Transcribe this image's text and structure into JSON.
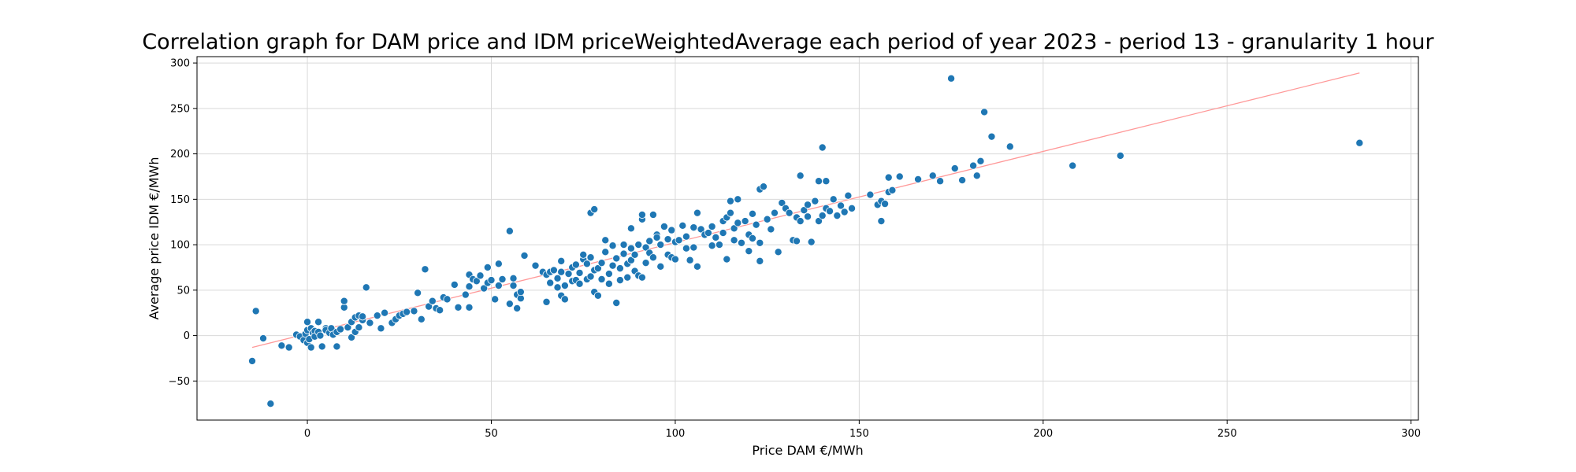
{
  "chart_data": {
    "type": "scatter",
    "title": "Correlation graph for DAM price and IDM priceWeightedAverage each period of year 2023 - period 13 - granularity 1 hour",
    "xlabel": "Price DAM €/MWh",
    "ylabel": "Average price IDM €/MWh",
    "xlim": [
      -30,
      302
    ],
    "ylim": [
      -93,
      307
    ],
    "xticks": [
      0,
      50,
      100,
      150,
      200,
      250,
      300
    ],
    "yticks": [
      -50,
      0,
      50,
      100,
      150,
      200,
      250,
      300
    ],
    "grid": true,
    "colors": {
      "points": "#1f77b4",
      "trend": "#ff9999"
    },
    "trendline": {
      "x": [
        -15,
        286
      ],
      "y": [
        -13,
        289
      ]
    },
    "points": [
      [
        -15,
        -28
      ],
      [
        -14,
        27
      ],
      [
        -12,
        -3
      ],
      [
        -10,
        -75
      ],
      [
        -7,
        -11
      ],
      [
        -5,
        -13
      ],
      [
        -3,
        1
      ],
      [
        -2,
        -1
      ],
      [
        -1,
        -5
      ],
      [
        -0.5,
        2
      ],
      [
        0,
        6
      ],
      [
        0,
        15
      ],
      [
        0,
        -8
      ],
      [
        0.5,
        -4
      ],
      [
        1,
        8
      ],
      [
        1,
        -13
      ],
      [
        1.5,
        3
      ],
      [
        2,
        5
      ],
      [
        2,
        -1
      ],
      [
        3,
        15
      ],
      [
        3,
        4
      ],
      [
        3.5,
        0
      ],
      [
        4,
        -12
      ],
      [
        5,
        8
      ],
      [
        5,
        6
      ],
      [
        6,
        3
      ],
      [
        6.5,
        8
      ],
      [
        7,
        1
      ],
      [
        8,
        4
      ],
      [
        8,
        -12
      ],
      [
        9,
        7
      ],
      [
        10,
        31
      ],
      [
        10,
        38
      ],
      [
        11,
        9
      ],
      [
        12,
        -2
      ],
      [
        12,
        15
      ],
      [
        13,
        20
      ],
      [
        13,
        4
      ],
      [
        14,
        22
      ],
      [
        14,
        9
      ],
      [
        15,
        17
      ],
      [
        15,
        21
      ],
      [
        16,
        53
      ],
      [
        17,
        14
      ],
      [
        19,
        22
      ],
      [
        20,
        8
      ],
      [
        21,
        25
      ],
      [
        23,
        14
      ],
      [
        24,
        18
      ],
      [
        25,
        22
      ],
      [
        26,
        24
      ],
      [
        27,
        26
      ],
      [
        29,
        27
      ],
      [
        30,
        47
      ],
      [
        31,
        18
      ],
      [
        32,
        73
      ],
      [
        33,
        32
      ],
      [
        34,
        38
      ],
      [
        35,
        30
      ],
      [
        36,
        28
      ],
      [
        37,
        42
      ],
      [
        38,
        40
      ],
      [
        40,
        56
      ],
      [
        41,
        31
      ],
      [
        43,
        45
      ],
      [
        44,
        31
      ],
      [
        44,
        54
      ],
      [
        44,
        67
      ],
      [
        45,
        62
      ],
      [
        46,
        60
      ],
      [
        47,
        66
      ],
      [
        48,
        52
      ],
      [
        49,
        58
      ],
      [
        49,
        75
      ],
      [
        50,
        61
      ],
      [
        51,
        40
      ],
      [
        52,
        55
      ],
      [
        52,
        79
      ],
      [
        53,
        62
      ],
      [
        55,
        115
      ],
      [
        55,
        35
      ],
      [
        56,
        63
      ],
      [
        56,
        55
      ],
      [
        57,
        45
      ],
      [
        57,
        30
      ],
      [
        58,
        41
      ],
      [
        58,
        48
      ],
      [
        59,
        88
      ],
      [
        62,
        77
      ],
      [
        64,
        70
      ],
      [
        65,
        37
      ],
      [
        65,
        67
      ],
      [
        66,
        58
      ],
      [
        66,
        70
      ],
      [
        67,
        72
      ],
      [
        68,
        53
      ],
      [
        68,
        63
      ],
      [
        69,
        70
      ],
      [
        69,
        82
      ],
      [
        69,
        44
      ],
      [
        70,
        40
      ],
      [
        70,
        55
      ],
      [
        71,
        68
      ],
      [
        72,
        60
      ],
      [
        72,
        75
      ],
      [
        73,
        78
      ],
      [
        73,
        61
      ],
      [
        74,
        57
      ],
      [
        74,
        69
      ],
      [
        75,
        84
      ],
      [
        75,
        89
      ],
      [
        76,
        62
      ],
      [
        76,
        79
      ],
      [
        77,
        65
      ],
      [
        77,
        86
      ],
      [
        77,
        135
      ],
      [
        78,
        139
      ],
      [
        78,
        48
      ],
      [
        78,
        72
      ],
      [
        79,
        44
      ],
      [
        79,
        74
      ],
      [
        80,
        80
      ],
      [
        80,
        62
      ],
      [
        81,
        105
      ],
      [
        81,
        92
      ],
      [
        82,
        68
      ],
      [
        82,
        57
      ],
      [
        83,
        77
      ],
      [
        83,
        99
      ],
      [
        84,
        36
      ],
      [
        84,
        85
      ],
      [
        85,
        61
      ],
      [
        85,
        74
      ],
      [
        86,
        100
      ],
      [
        86,
        90
      ],
      [
        87,
        64
      ],
      [
        87,
        79
      ],
      [
        88,
        83
      ],
      [
        88,
        96
      ],
      [
        88,
        118
      ],
      [
        89,
        89
      ],
      [
        89,
        71
      ],
      [
        90,
        66
      ],
      [
        90,
        100
      ],
      [
        91,
        64
      ],
      [
        91,
        128
      ],
      [
        91,
        133
      ],
      [
        92,
        80
      ],
      [
        92,
        97
      ],
      [
        93,
        91
      ],
      [
        93,
        104
      ],
      [
        94,
        133
      ],
      [
        94,
        86
      ],
      [
        95,
        111
      ],
      [
        95,
        108
      ],
      [
        96,
        76
      ],
      [
        96,
        100
      ],
      [
        97,
        120
      ],
      [
        98,
        89
      ],
      [
        98,
        106
      ],
      [
        99,
        86
      ],
      [
        99,
        116
      ],
      [
        100,
        84
      ],
      [
        100,
        103
      ],
      [
        101,
        105
      ],
      [
        102,
        121
      ],
      [
        103,
        96
      ],
      [
        103,
        109
      ],
      [
        104,
        83
      ],
      [
        105,
        97
      ],
      [
        105,
        119
      ],
      [
        106,
        76
      ],
      [
        106,
        135
      ],
      [
        107,
        117
      ],
      [
        108,
        111
      ],
      [
        109,
        113
      ],
      [
        110,
        99
      ],
      [
        110,
        120
      ],
      [
        111,
        108
      ],
      [
        112,
        100
      ],
      [
        113,
        113
      ],
      [
        113,
        126
      ],
      [
        114,
        84
      ],
      [
        114,
        130
      ],
      [
        115,
        135
      ],
      [
        115,
        148
      ],
      [
        116,
        105
      ],
      [
        116,
        118
      ],
      [
        117,
        124
      ],
      [
        117,
        150
      ],
      [
        118,
        102
      ],
      [
        119,
        126
      ],
      [
        120,
        93
      ],
      [
        120,
        111
      ],
      [
        121,
        107
      ],
      [
        121,
        134
      ],
      [
        122,
        122
      ],
      [
        123,
        82
      ],
      [
        123,
        102
      ],
      [
        123,
        161
      ],
      [
        124,
        164
      ],
      [
        125,
        128
      ],
      [
        126,
        117
      ],
      [
        127,
        135
      ],
      [
        128,
        92
      ],
      [
        129,
        146
      ],
      [
        130,
        140
      ],
      [
        131,
        135
      ],
      [
        132,
        105
      ],
      [
        133,
        104
      ],
      [
        133,
        130
      ],
      [
        134,
        126
      ],
      [
        134,
        176
      ],
      [
        135,
        138
      ],
      [
        136,
        131
      ],
      [
        136,
        144
      ],
      [
        137,
        103
      ],
      [
        138,
        148
      ],
      [
        139,
        126
      ],
      [
        139,
        170
      ],
      [
        140,
        207
      ],
      [
        140,
        132
      ],
      [
        141,
        170
      ],
      [
        141,
        140
      ],
      [
        142,
        137
      ],
      [
        143,
        150
      ],
      [
        144,
        132
      ],
      [
        145,
        143
      ],
      [
        146,
        136
      ],
      [
        147,
        154
      ],
      [
        148,
        140
      ],
      [
        153,
        155
      ],
      [
        155,
        144
      ],
      [
        156,
        148
      ],
      [
        156,
        126
      ],
      [
        157,
        145
      ],
      [
        158,
        158
      ],
      [
        158,
        174
      ],
      [
        159,
        160
      ],
      [
        161,
        175
      ],
      [
        166,
        172
      ],
      [
        170,
        176
      ],
      [
        172,
        170
      ],
      [
        175,
        283
      ],
      [
        176,
        184
      ],
      [
        178,
        171
      ],
      [
        181,
        187
      ],
      [
        182,
        176
      ],
      [
        183,
        192
      ],
      [
        184,
        246
      ],
      [
        186,
        219
      ],
      [
        191,
        208
      ],
      [
        208,
        187
      ],
      [
        221,
        198
      ],
      [
        286,
        212
      ]
    ]
  }
}
